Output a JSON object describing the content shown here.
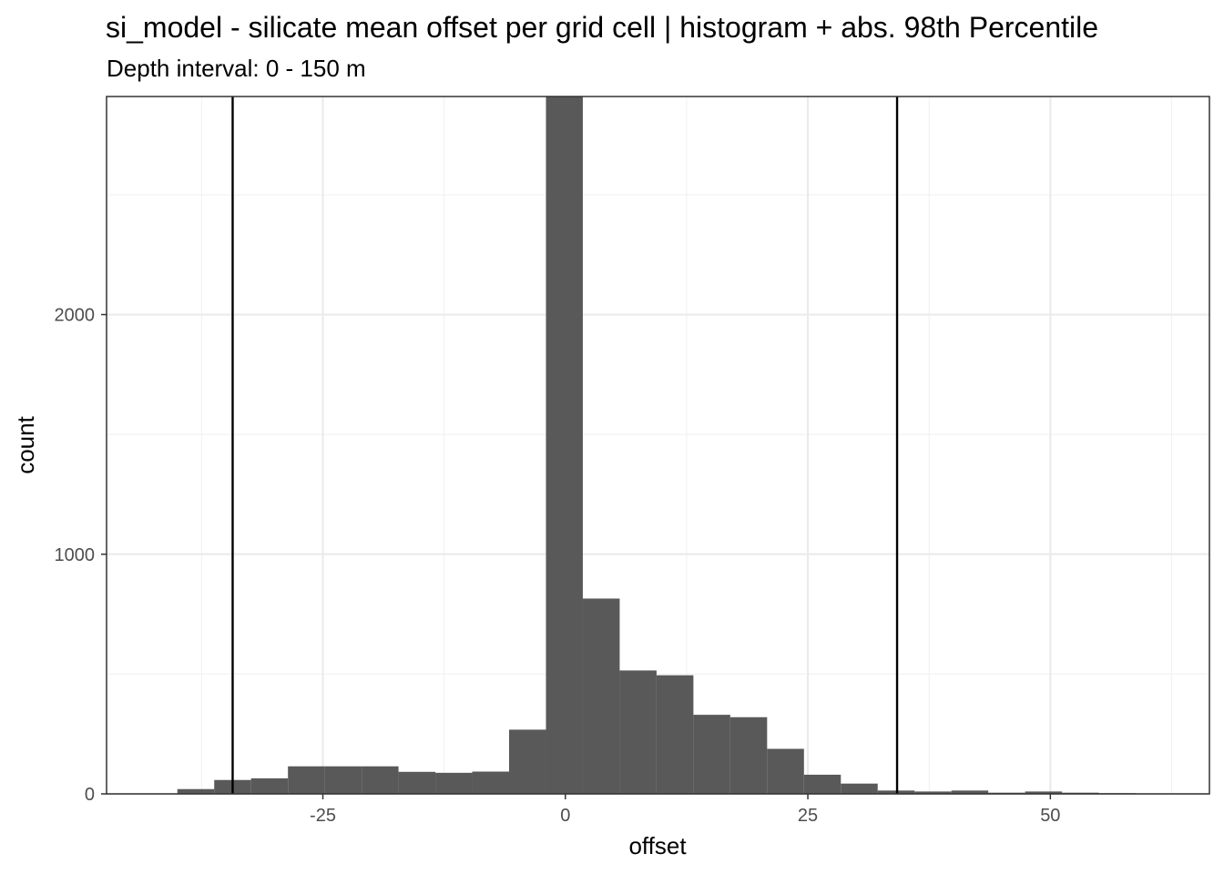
{
  "chart_data": {
    "type": "bar",
    "title": "si_model  -  silicate mean offset per grid cell | histogram + abs. 98th Percentile",
    "subtitle": "Depth interval: 0 - 150 m",
    "xlabel": "offset",
    "ylabel": "count",
    "xlim": [
      -47.3,
      66.4
    ],
    "ylim": [
      0,
      2910
    ],
    "x_ticks": [
      -25,
      0,
      25,
      50
    ],
    "x_tick_labels": [
      "-25",
      "0",
      "25",
      "50"
    ],
    "y_ticks": [
      0,
      1000,
      2000
    ],
    "y_tick_labels": [
      "0",
      "1000",
      "2000"
    ],
    "y_minor_gridlines": [
      500,
      1500,
      2500
    ],
    "x_minor_gridlines": [
      -37.5,
      -12.5,
      12.5,
      37.5,
      62.5
    ],
    "grid": true,
    "bin_width": 3.8,
    "bins": [
      {
        "x0": -40.0,
        "x1": -36.2,
        "count": 20
      },
      {
        "x0": -36.2,
        "x1": -32.4,
        "count": 58
      },
      {
        "x0": -32.4,
        "x1": -28.6,
        "count": 65
      },
      {
        "x0": -28.6,
        "x1": -24.8,
        "count": 115
      },
      {
        "x0": -24.8,
        "x1": -21.0,
        "count": 115
      },
      {
        "x0": -21.0,
        "x1": -17.2,
        "count": 115
      },
      {
        "x0": -17.2,
        "x1": -13.4,
        "count": 92
      },
      {
        "x0": -13.4,
        "x1": -9.6,
        "count": 88
      },
      {
        "x0": -9.6,
        "x1": -5.8,
        "count": 93
      },
      {
        "x0": -5.8,
        "x1": -2.0,
        "count": 268
      },
      {
        "x0": -2.0,
        "x1": 1.8,
        "count": 2910
      },
      {
        "x0": 1.8,
        "x1": 5.6,
        "count": 815
      },
      {
        "x0": 5.6,
        "x1": 9.4,
        "count": 515
      },
      {
        "x0": 9.4,
        "x1": 13.2,
        "count": 495
      },
      {
        "x0": 13.2,
        "x1": 17.0,
        "count": 330
      },
      {
        "x0": 17.0,
        "x1": 20.8,
        "count": 320
      },
      {
        "x0": 20.8,
        "x1": 24.6,
        "count": 188
      },
      {
        "x0": 24.6,
        "x1": 28.4,
        "count": 80
      },
      {
        "x0": 28.4,
        "x1": 32.2,
        "count": 43
      },
      {
        "x0": 32.2,
        "x1": 36.0,
        "count": 14
      },
      {
        "x0": 36.0,
        "x1": 39.8,
        "count": 10
      },
      {
        "x0": 39.8,
        "x1": 43.6,
        "count": 14
      },
      {
        "x0": 43.6,
        "x1": 47.4,
        "count": 5
      },
      {
        "x0": 47.4,
        "x1": 51.2,
        "count": 10
      },
      {
        "x0": 51.2,
        "x1": 55.0,
        "count": 5
      },
      {
        "x0": 55.0,
        "x1": 58.8,
        "count": 3
      }
    ],
    "vlines": [
      -34.3,
      34.2
    ],
    "colors": {
      "bar_fill": "#595959",
      "vline": "#000000",
      "grid_major": "#ebebeb",
      "grid_minor": "#f2f2f2",
      "panel_border": "#333333",
      "tick": "#333333"
    }
  }
}
